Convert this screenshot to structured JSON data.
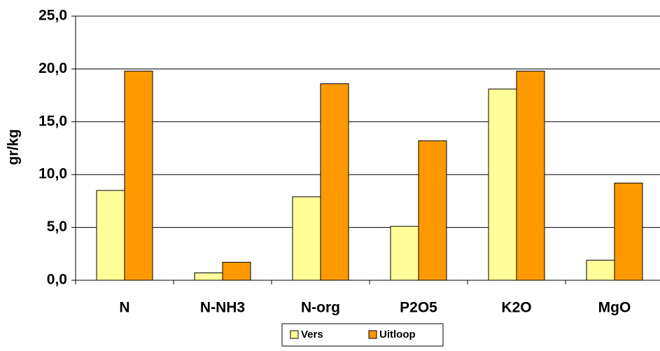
{
  "chart_data": {
    "type": "bar",
    "y_label": "gr/kg",
    "categories": [
      "N",
      "N-NH3",
      "N-org",
      "P2O5",
      "K2O",
      "MgO"
    ],
    "series": [
      {
        "name": "Vers",
        "color": "#ffff99",
        "values": [
          8.5,
          0.7,
          7.9,
          5.1,
          18.1,
          1.9
        ]
      },
      {
        "name": "Uitloop",
        "color": "#ff9900",
        "values": [
          19.8,
          1.7,
          18.6,
          13.2,
          19.8,
          9.2
        ]
      }
    ],
    "ylim": [
      0,
      25
    ],
    "yticks": [
      {
        "value": 0,
        "label": "0,0"
      },
      {
        "value": 5,
        "label": "5,0"
      },
      {
        "value": 10,
        "label": "10,0"
      },
      {
        "value": 15,
        "label": "15,0"
      },
      {
        "value": 20,
        "label": "20,0"
      },
      {
        "value": 25,
        "label": "25,0"
      }
    ],
    "grid": true,
    "legend": "bottom"
  }
}
